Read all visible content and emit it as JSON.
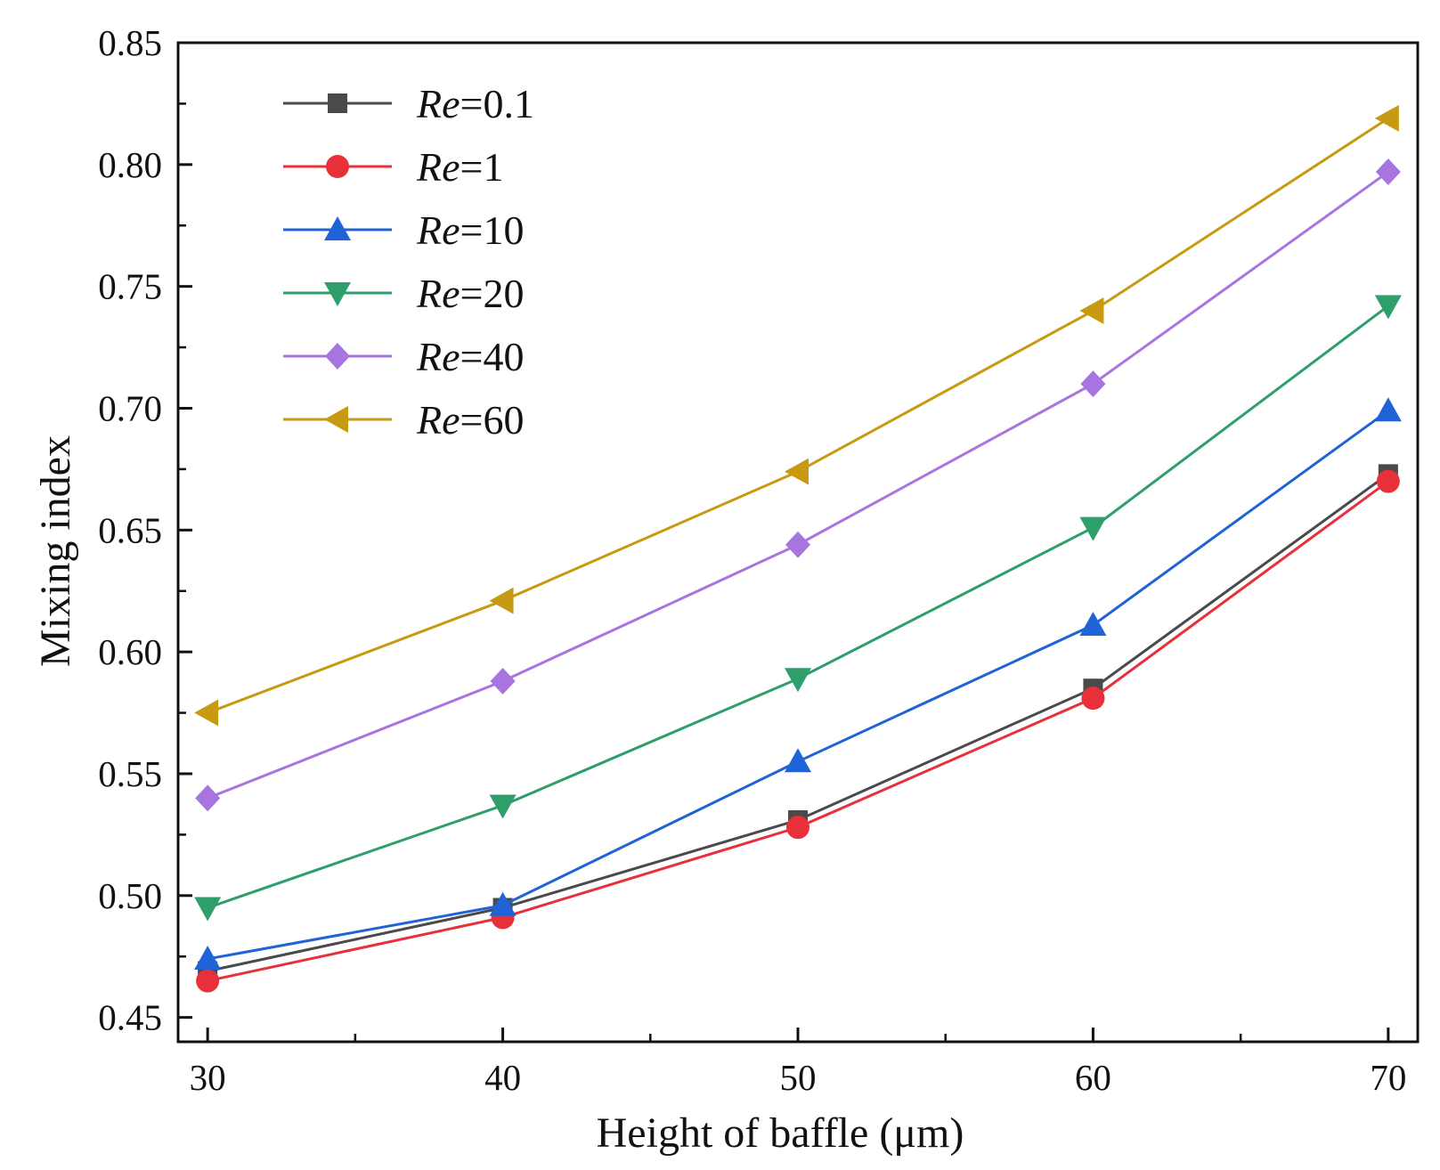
{
  "chart_data": {
    "type": "line",
    "title": "",
    "xlabel": "Height of baffle (μm)",
    "ylabel": "Mixing index",
    "x": [
      30,
      40,
      50,
      60,
      70
    ],
    "xlim": [
      29,
      71
    ],
    "ylim": [
      0.44,
      0.85
    ],
    "xticks": [
      30,
      40,
      50,
      60,
      70
    ],
    "xtick_labels": [
      "30",
      "40",
      "50",
      "60",
      "70"
    ],
    "yticks": [
      0.45,
      0.5,
      0.55,
      0.6,
      0.65,
      0.7,
      0.75,
      0.8,
      0.85
    ],
    "ytick_labels": [
      "0.45",
      "0.50",
      "0.55",
      "0.60",
      "0.65",
      "0.70",
      "0.75",
      "0.80",
      "0.85"
    ],
    "legend_position": "top-left",
    "series": [
      {
        "name": "Re=0.1",
        "label_italic": "Re",
        "label_rest": "=0.1",
        "color": "#4a4a4a",
        "marker": "square",
        "values": [
          0.469,
          0.495,
          0.531,
          0.585,
          0.673
        ]
      },
      {
        "name": "Re=1",
        "label_italic": "Re",
        "label_rest": "=1",
        "color": "#e8303a",
        "marker": "circle",
        "values": [
          0.465,
          0.491,
          0.528,
          0.581,
          0.67
        ]
      },
      {
        "name": "Re=10",
        "label_italic": "Re",
        "label_rest": "=10",
        "color": "#1f63d6",
        "marker": "triangle-up",
        "values": [
          0.474,
          0.496,
          0.555,
          0.611,
          0.699
        ]
      },
      {
        "name": "Re=20",
        "label_italic": "Re",
        "label_rest": "=20",
        "color": "#2e9e6b",
        "marker": "triangle-down",
        "values": [
          0.495,
          0.537,
          0.589,
          0.651,
          0.742
        ]
      },
      {
        "name": "Re=40",
        "label_italic": "Re",
        "label_rest": "=40",
        "color": "#a875e0",
        "marker": "diamond",
        "values": [
          0.54,
          0.588,
          0.644,
          0.71,
          0.797
        ]
      },
      {
        "name": "Re=60",
        "label_italic": "Re",
        "label_rest": "=60",
        "color": "#c89a12",
        "marker": "triangle-left",
        "values": [
          0.575,
          0.621,
          0.674,
          0.74,
          0.819
        ]
      }
    ]
  }
}
